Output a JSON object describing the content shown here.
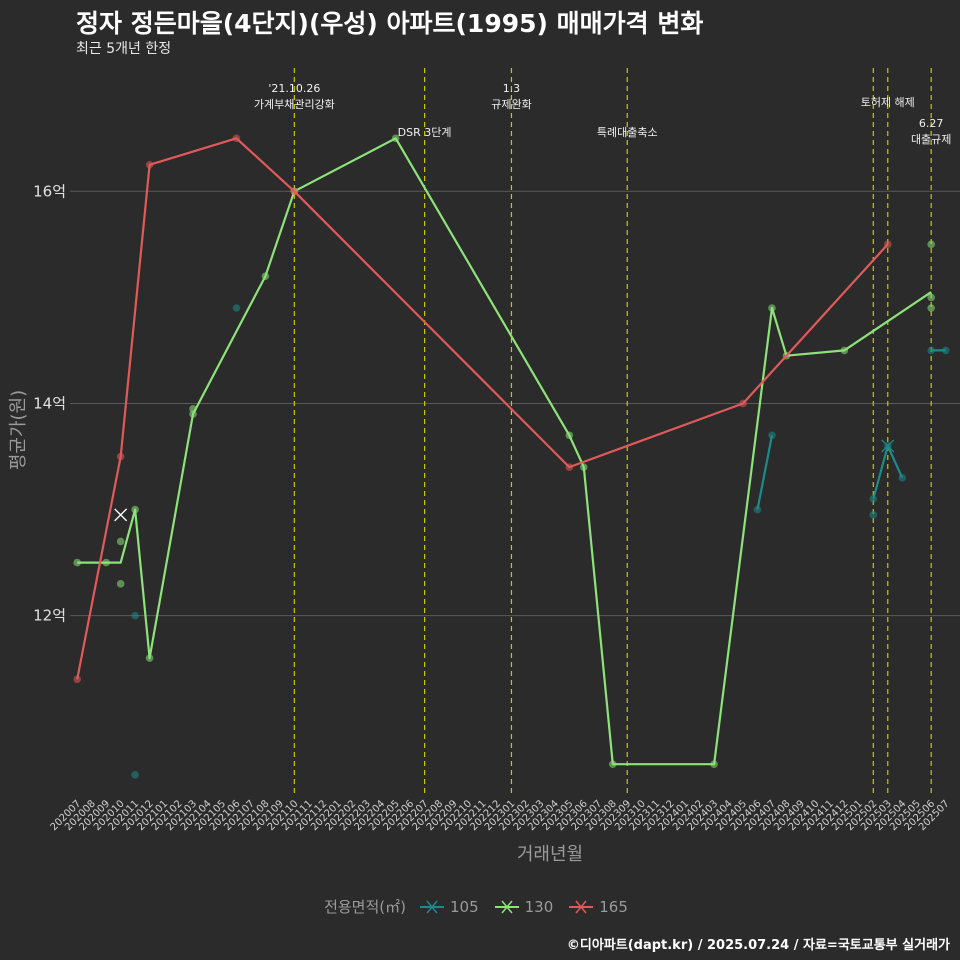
{
  "header": {
    "title": "정자 정든마을(4단지)(우성) 아파트(1995) 매매가격 변화",
    "subtitle": "최근 5개년 한정"
  },
  "caption": "©디아파트(dapt.kr) / 2025.07.24 / 자료=국토교통부 실거래가",
  "colors": {
    "s105": "#1e8a8a",
    "s130": "#8de27a",
    "s165": "#e05a5a",
    "event": "#c8c800",
    "grid": "#5a5a5a"
  },
  "legend": {
    "title": "전용면적(㎡)",
    "items": [
      "105",
      "130",
      "165"
    ]
  },
  "chart_data": {
    "type": "line",
    "xlabel": "거래년월",
    "ylabel": "평균가(원)",
    "categories": [
      "202007",
      "202008",
      "202009",
      "202010",
      "202011",
      "202012",
      "202101",
      "202102",
      "202103",
      "202104",
      "202105",
      "202106",
      "202107",
      "202108",
      "202109",
      "202110",
      "202111",
      "202112",
      "202201",
      "202202",
      "202203",
      "202204",
      "202205",
      "202206",
      "202207",
      "202208",
      "202209",
      "202210",
      "202211",
      "202212",
      "202301",
      "202302",
      "202303",
      "202304",
      "202305",
      "202306",
      "202307",
      "202308",
      "202309",
      "202310",
      "202311",
      "202312",
      "202401",
      "202402",
      "202403",
      "202404",
      "202405",
      "202406",
      "202407",
      "202408",
      "202409",
      "202410",
      "202411",
      "202412",
      "202501",
      "202502",
      "202503",
      "202504",
      "202505",
      "202506",
      "202507"
    ],
    "y_ticks": [
      {
        "value": 12,
        "label": "12억"
      },
      {
        "value": 14,
        "label": "14억"
      },
      {
        "value": 16,
        "label": "16억"
      }
    ],
    "ylim": [
      10.3,
      17.2
    ],
    "series": [
      {
        "name": "105",
        "line": [
          [
            "202406",
            13.0
          ],
          [
            "202407",
            13.7
          ],
          [
            "202502",
            13.1
          ],
          [
            "202503",
            13.6
          ],
          [
            "202504",
            13.3
          ],
          [
            "202506",
            14.5
          ],
          [
            "202507",
            14.5
          ]
        ],
        "points": [
          [
            "202011",
            12.0
          ],
          [
            "202011",
            10.5
          ],
          [
            "202106",
            14.9
          ],
          [
            "202406",
            13.0
          ],
          [
            "202407",
            13.7
          ],
          [
            "202502",
            13.1
          ],
          [
            "202502",
            12.95
          ],
          [
            "202503",
            13.6
          ],
          [
            "202504",
            13.3
          ],
          [
            "202506",
            14.5
          ],
          [
            "202507",
            14.5
          ]
        ],
        "crosses": [
          [
            "202503",
            13.6
          ]
        ]
      },
      {
        "name": "130",
        "line": [
          [
            "202007",
            12.5
          ],
          [
            "202009",
            12.5
          ],
          [
            "202010",
            12.5
          ],
          [
            "202011",
            13.0
          ],
          [
            "202012",
            11.6
          ],
          [
            "202103",
            13.9
          ],
          [
            "202108",
            15.2
          ],
          [
            "202110",
            16.0
          ],
          [
            "202205",
            16.5
          ],
          [
            "202305",
            13.7
          ],
          [
            "202306",
            13.4
          ],
          [
            "202308",
            10.6
          ],
          [
            "202403",
            10.6
          ],
          [
            "202407",
            14.9
          ],
          [
            "202408",
            14.45
          ],
          [
            "202412",
            14.5
          ],
          [
            "202506",
            15.05
          ]
        ],
        "points": [
          [
            "202007",
            12.5
          ],
          [
            "202009",
            12.5
          ],
          [
            "202010",
            12.3
          ],
          [
            "202010",
            12.7
          ],
          [
            "202011",
            13.0
          ],
          [
            "202012",
            11.6
          ],
          [
            "202103",
            13.9
          ],
          [
            "202103",
            13.95
          ],
          [
            "202108",
            15.2
          ],
          [
            "202110",
            16.0
          ],
          [
            "202205",
            16.5
          ],
          [
            "202305",
            13.7
          ],
          [
            "202306",
            13.4
          ],
          [
            "202308",
            10.6
          ],
          [
            "202403",
            10.6
          ],
          [
            "202407",
            14.9
          ],
          [
            "202408",
            14.45
          ],
          [
            "202412",
            14.5
          ],
          [
            "202506",
            15.5
          ],
          [
            "202506",
            15.0
          ],
          [
            "202506",
            14.9
          ]
        ],
        "crosses": [
          [
            "202010",
            12.95
          ]
        ]
      },
      {
        "name": "165",
        "line": [
          [
            "202007",
            11.4
          ],
          [
            "202010",
            13.5
          ],
          [
            "202012",
            16.25
          ],
          [
            "202106",
            16.5
          ],
          [
            "202110",
            16.0
          ],
          [
            "202305",
            13.4
          ],
          [
            "202405",
            14.0
          ],
          [
            "202503",
            15.5
          ]
        ],
        "points": [
          [
            "202007",
            11.4
          ],
          [
            "202010",
            13.5
          ],
          [
            "202012",
            16.25
          ],
          [
            "202106",
            16.5
          ],
          [
            "202110",
            16.0
          ],
          [
            "202305",
            13.4
          ],
          [
            "202405",
            14.0
          ],
          [
            "202503",
            15.5
          ]
        ],
        "crosses": []
      }
    ],
    "events": [
      {
        "x": "202110",
        "lines": [
          "'21.10.26",
          "가계부채관리강화"
        ],
        "row": 0
      },
      {
        "x": "202207",
        "lines": [
          "DSR 3단계"
        ],
        "row": 2
      },
      {
        "x": "202301",
        "lines": [
          "1.3",
          "규제완화"
        ],
        "row": 0
      },
      {
        "x": "202309",
        "lines": [
          "특례대출축소"
        ],
        "row": 2
      },
      {
        "x": "202502",
        "lines": [],
        "row": 0
      },
      {
        "x": "202503",
        "lines": [
          "토허제 해제"
        ],
        "row": 1
      },
      {
        "x": "202506",
        "lines": [
          "6.27",
          "대출규제"
        ],
        "row": 3
      }
    ]
  }
}
